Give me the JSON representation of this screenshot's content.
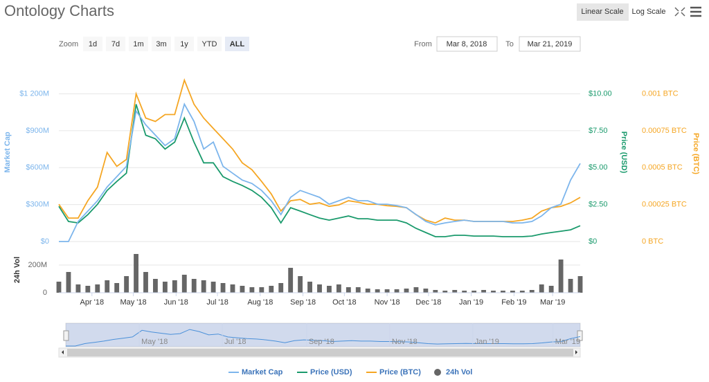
{
  "header": {
    "title": "Ontology Charts",
    "scale_buttons": [
      "Linear Scale",
      "Log Scale"
    ]
  },
  "controls": {
    "zoom_label": "Zoom",
    "zoom_buttons": [
      "1d",
      "7d",
      "1m",
      "3m",
      "1y",
      "YTD",
      "ALL"
    ],
    "from_label": "From",
    "from_date": "Mar 8, 2018",
    "to_label": "To",
    "to_date": "Mar 21, 2019"
  },
  "chart_data": {
    "type": "line",
    "x": [
      "2018-03-08",
      "2018-03-15",
      "2018-03-22",
      "2018-03-29",
      "2018-04-05",
      "2018-04-12",
      "2018-04-19",
      "2018-04-26",
      "2018-05-03",
      "2018-05-10",
      "2018-05-17",
      "2018-05-24",
      "2018-05-31",
      "2018-06-07",
      "2018-06-14",
      "2018-06-21",
      "2018-06-28",
      "2018-07-05",
      "2018-07-12",
      "2018-07-19",
      "2018-07-26",
      "2018-08-02",
      "2018-08-09",
      "2018-08-16",
      "2018-08-23",
      "2018-08-30",
      "2018-09-06",
      "2018-09-13",
      "2018-09-20",
      "2018-09-27",
      "2018-10-04",
      "2018-10-11",
      "2018-10-18",
      "2018-10-25",
      "2018-11-01",
      "2018-11-08",
      "2018-11-15",
      "2018-11-22",
      "2018-11-29",
      "2018-12-06",
      "2018-12-13",
      "2018-12-20",
      "2018-12-27",
      "2019-01-03",
      "2019-01-10",
      "2019-01-17",
      "2019-01-24",
      "2019-01-31",
      "2019-02-07",
      "2019-02-14",
      "2019-02-21",
      "2019-02-28",
      "2019-03-07",
      "2019-03-14",
      "2019-03-21"
    ],
    "xlim": [
      "2018-03-08",
      "2019-03-21"
    ],
    "xticks": [
      {
        "value": "2018-04-01",
        "label": "Apr '18"
      },
      {
        "value": "2018-05-01",
        "label": "May '18"
      },
      {
        "value": "2018-06-01",
        "label": "Jun '18"
      },
      {
        "value": "2018-07-01",
        "label": "Jul '18"
      },
      {
        "value": "2018-08-01",
        "label": "Aug '18"
      },
      {
        "value": "2018-09-01",
        "label": "Sep '18"
      },
      {
        "value": "2018-10-01",
        "label": "Oct '18"
      },
      {
        "value": "2018-11-01",
        "label": "Nov '18"
      },
      {
        "value": "2018-12-01",
        "label": "Dec '18"
      },
      {
        "value": "2019-01-01",
        "label": "Jan '19"
      },
      {
        "value": "2019-02-01",
        "label": "Feb '19"
      },
      {
        "value": "2019-03-01",
        "label": "Mar '19"
      }
    ],
    "ylabel": "Market Cap",
    "ylim": [
      0,
      1400
    ],
    "yticks": [
      {
        "value": 0,
        "label": "$0"
      },
      {
        "value": 300,
        "label": "$300M"
      },
      {
        "value": 600,
        "label": "$600M"
      },
      {
        "value": 900,
        "label": "$900M"
      },
      {
        "value": 1200,
        "label": "$1 200M"
      }
    ],
    "y2label": "Price (USD)",
    "y2lim": [
      0,
      11.67
    ],
    "y2ticks": [
      {
        "value": 0,
        "label": "$0"
      },
      {
        "value": 2.5,
        "label": "$2.50"
      },
      {
        "value": 5,
        "label": "$5.00"
      },
      {
        "value": 7.5,
        "label": "$7.50"
      },
      {
        "value": 10,
        "label": "$10.00"
      }
    ],
    "y3label": "Price (BTC)",
    "y3lim": [
      0,
      0.001167
    ],
    "y3ticks": [
      {
        "value": 0,
        "label": "0 BTC"
      },
      {
        "value": 0.00025,
        "label": "0.00025 BTC"
      },
      {
        "value": 0.0005,
        "label": "0.0005 BTC"
      },
      {
        "value": 0.00075,
        "label": "0.00075 BTC"
      },
      {
        "value": 0.001,
        "label": "0.001 BTC"
      }
    ],
    "grid": true,
    "series": [
      {
        "name": "Market Cap",
        "color": "#7cb5ec",
        "axis": "y",
        "values": [
          0,
          0,
          163,
          247,
          331,
          443,
          527,
          611,
          1060,
          948,
          864,
          780,
          836,
          1116,
          976,
          752,
          808,
          611,
          555,
          499,
          471,
          415,
          331,
          219,
          359,
          415,
          387,
          359,
          303,
          331,
          359,
          331,
          331,
          303,
          303,
          292,
          275,
          219,
          163,
          135,
          151,
          163,
          174,
          163,
          163,
          163,
          163,
          151,
          151,
          163,
          208,
          275,
          303,
          499,
          634
        ]
      },
      {
        "name": "Price (USD)",
        "color": "#1a9a6c",
        "axis": "y2",
        "values": [
          2.38,
          1.36,
          1.26,
          1.82,
          2.52,
          3.46,
          4.07,
          4.63,
          9.3,
          7.2,
          6.96,
          6.26,
          6.73,
          8.36,
          6.73,
          5.33,
          5.33,
          4.39,
          4.07,
          3.79,
          3.46,
          2.99,
          2.29,
          1.26,
          2.29,
          2.06,
          1.82,
          1.59,
          1.45,
          1.59,
          1.73,
          1.54,
          1.54,
          1.45,
          1.45,
          1.45,
          1.26,
          0.89,
          0.61,
          0.33,
          0.33,
          0.42,
          0.42,
          0.37,
          0.37,
          0.37,
          0.33,
          0.33,
          0.33,
          0.37,
          0.51,
          0.61,
          0.7,
          0.79,
          1.07
        ]
      },
      {
        "name": "Price (BTC)",
        "color": "#f5a623",
        "axis": "y3",
        "values": [
          0.000252,
          0.000159,
          0.000159,
          0.000276,
          0.000369,
          0.000603,
          0.000509,
          0.000556,
          0.001,
          0.000836,
          0.000813,
          0.00086,
          0.00086,
          0.001093,
          0.00093,
          0.000836,
          0.000766,
          0.000696,
          0.000626,
          0.000533,
          0.000486,
          0.000407,
          0.000322,
          0.000206,
          0.000276,
          0.000285,
          0.000252,
          0.000262,
          0.000238,
          0.000248,
          0.000276,
          0.000266,
          0.000252,
          0.000252,
          0.000243,
          0.000238,
          0.000229,
          0.000182,
          0.000145,
          0.000126,
          0.000159,
          0.000145,
          0.000145,
          0.000136,
          0.000136,
          0.000136,
          0.000136,
          0.000136,
          0.000145,
          0.000159,
          0.000206,
          0.000229,
          0.000238,
          0.000262,
          0.000299
        ]
      }
    ],
    "volume": {
      "name": "24h Vol",
      "color": "#666666",
      "ylim": [
        0,
        315
      ],
      "yticks": [
        0,
        {
          "value": 200,
          "label": "200M"
        }
      ],
      "values": [
        80,
        150,
        60,
        50,
        60,
        90,
        70,
        120,
        280,
        150,
        100,
        80,
        90,
        130,
        100,
        90,
        80,
        70,
        60,
        50,
        40,
        40,
        50,
        70,
        180,
        120,
        80,
        60,
        50,
        60,
        40,
        40,
        30,
        25,
        25,
        25,
        30,
        40,
        30,
        20,
        15,
        20,
        15,
        15,
        20,
        15,
        15,
        15,
        15,
        20,
        60,
        50,
        240,
        100,
        120
      ]
    },
    "navigator": {
      "xticks": [
        {
          "value": "2018-05-01",
          "label": "May '18"
        },
        {
          "value": "2018-07-01",
          "label": "Jul '18"
        },
        {
          "value": "2018-09-01",
          "label": "Sep '18"
        },
        {
          "value": "2018-11-01",
          "label": "Nov '18"
        },
        {
          "value": "2019-01-01",
          "label": "Jan '19"
        },
        {
          "value": "2019-03-01",
          "label": "Mar '19"
        }
      ]
    }
  }
}
